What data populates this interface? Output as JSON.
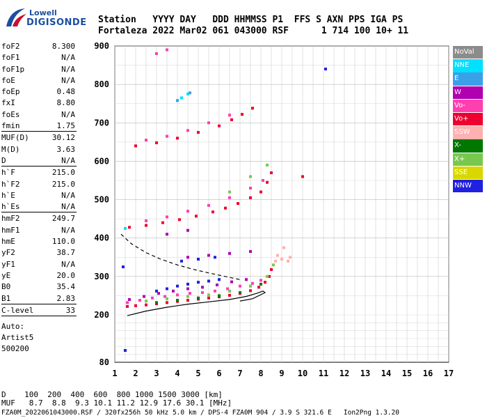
{
  "logo": {
    "line1": "Lowell",
    "line2": "DIGISONDE"
  },
  "header": {
    "row1": "Station   YYYY DAY   DDD HHMMSS P1  FFS S AXN PPS IGA PS",
    "row2": "Fortaleza 2022 Mar02 061 043000 RSF      1 714 100 10+ 11"
  },
  "params": [
    {
      "name": "foF2",
      "value": "8.300"
    },
    {
      "name": "foF1",
      "value": "N/A"
    },
    {
      "name": "foF1p",
      "value": "N/A"
    },
    {
      "name": "foE",
      "value": "N/A"
    },
    {
      "name": "foEp",
      "value": "0.48"
    },
    {
      "name": "fxI",
      "value": "8.80"
    },
    {
      "name": "foEs",
      "value": "N/A"
    },
    {
      "name": "fmin",
      "value": "1.75"
    },
    {
      "name": "MUF(D)",
      "value": "30.12"
    },
    {
      "name": "M(D)",
      "value": "3.63"
    },
    {
      "name": "D",
      "value": "N/A"
    },
    {
      "name": "h`F",
      "value": "215.0"
    },
    {
      "name": "h`F2",
      "value": "215.0"
    },
    {
      "name": "h`E",
      "value": "N/A"
    },
    {
      "name": "h`Es",
      "value": "N/A"
    },
    {
      "name": "hmF2",
      "value": "249.7"
    },
    {
      "name": "hmF1",
      "value": "N/A"
    },
    {
      "name": "hmE",
      "value": "110.0"
    },
    {
      "name": "yF2",
      "value": "38.7"
    },
    {
      "name": "yF1",
      "value": "N/A"
    },
    {
      "name": "yE",
      "value": "20.0"
    },
    {
      "name": "B0",
      "value": "35.4"
    },
    {
      "name": "B1",
      "value": "2.83"
    },
    {
      "name": "C-level",
      "value": "33"
    }
  ],
  "auto": {
    "line1": "Auto:",
    "line2": "Artist5",
    "line3": "500200"
  },
  "legend": [
    {
      "label": "NoVal",
      "color": "#8c8c8c"
    },
    {
      "label": "NNE",
      "color": "#00e0ff"
    },
    {
      "label": "E",
      "color": "#3aa0e8"
    },
    {
      "label": "W",
      "color": "#b000b0"
    },
    {
      "label": "Vo-",
      "color": "#ff3fb0"
    },
    {
      "label": "Vo+",
      "color": "#ee0030"
    },
    {
      "label": "SSW",
      "color": "#ffb0b0"
    },
    {
      "label": "X-",
      "color": "#007800"
    },
    {
      "label": "X+",
      "color": "#78c850"
    },
    {
      "label": "SSE",
      "color": "#d8d800"
    },
    {
      "label": "NNW",
      "color": "#2020e0"
    }
  ],
  "footer": {
    "row1": "D    100  200  400  600  800 1000 1500 3000 [km]",
    "row2": "MUF   8.7  8.8  9.3 10.1 11.2 12.9 17.6 30.1 [MHz]",
    "row3": "FZA0M_2022061043000.RSF / 320fx256h 50 kHz 5.0 km / DPS-4 FZA0M 904 / 3.9 S 321.6 E   Ion2Png 1.3.20"
  },
  "chart_data": {
    "type": "scatter",
    "xlabel": "",
    "ylabel": "",
    "xlim": [
      1,
      17
    ],
    "ylim": [
      80,
      900
    ],
    "x_ticks": [
      1,
      2,
      3,
      4,
      5,
      6,
      7,
      8,
      9,
      10,
      11,
      12,
      13,
      14,
      15,
      16,
      17
    ],
    "y_ticks": [
      80,
      200,
      300,
      400,
      500,
      600,
      700,
      800,
      900
    ],
    "grid": true,
    "legend_position": "right",
    "series": [
      {
        "name": "Vo+",
        "color": "#ee0030",
        "points": [
          [
            1.6,
            222
          ],
          [
            2.0,
            224
          ],
          [
            2.5,
            226
          ],
          [
            3.0,
            229
          ],
          [
            3.5,
            232
          ],
          [
            4.0,
            235
          ],
          [
            4.5,
            238
          ],
          [
            5.0,
            241
          ],
          [
            5.5,
            244
          ],
          [
            6.0,
            247
          ],
          [
            6.5,
            251
          ],
          [
            7.0,
            256
          ],
          [
            7.5,
            263
          ],
          [
            7.9,
            272
          ],
          [
            8.2,
            285
          ],
          [
            8.4,
            300
          ],
          [
            8.5,
            318
          ]
        ]
      },
      {
        "name": "Vo-",
        "color": "#ff3fb0",
        "points": [
          [
            1.6,
            232
          ],
          [
            2.2,
            238
          ],
          [
            2.8,
            244
          ],
          [
            3.4,
            248
          ],
          [
            4.0,
            252
          ],
          [
            4.6,
            256
          ],
          [
            5.2,
            258
          ],
          [
            5.8,
            262
          ],
          [
            6.4,
            268
          ],
          [
            7.0,
            275
          ],
          [
            7.6,
            282
          ],
          [
            8.0,
            290
          ]
        ]
      },
      {
        "name": "W",
        "color": "#b000b0",
        "points": [
          [
            1.7,
            240
          ],
          [
            2.4,
            248
          ],
          [
            3.1,
            256
          ],
          [
            3.8,
            262
          ],
          [
            4.5,
            268
          ],
          [
            5.2,
            272
          ],
          [
            5.9,
            278
          ],
          [
            6.6,
            286
          ],
          [
            7.3,
            292
          ],
          [
            4.5,
            350
          ],
          [
            5.5,
            355
          ],
          [
            6.5,
            360
          ],
          [
            7.5,
            365
          ],
          [
            3.5,
            410
          ],
          [
            4.5,
            420
          ]
        ]
      },
      {
        "name": "NNW",
        "color": "#2020e0",
        "points": [
          [
            3.0,
            262
          ],
          [
            3.5,
            268
          ],
          [
            4.0,
            275
          ],
          [
            4.5,
            280
          ],
          [
            5.0,
            285
          ],
          [
            5.5,
            288
          ],
          [
            6.0,
            292
          ],
          [
            4.2,
            340
          ],
          [
            5.0,
            345
          ],
          [
            5.8,
            350
          ],
          [
            11.1,
            840
          ],
          [
            1.4,
            325
          ],
          [
            1.5,
            110
          ]
        ]
      },
      {
        "name": "X+",
        "color": "#78c850",
        "points": [
          [
            2.5,
            236
          ],
          [
            3.5,
            242
          ],
          [
            4.5,
            248
          ],
          [
            5.5,
            252
          ],
          [
            6.5,
            262
          ],
          [
            7.5,
            275
          ],
          [
            8.3,
            300
          ],
          [
            8.6,
            330
          ],
          [
            8.3,
            590
          ],
          [
            7.5,
            560
          ],
          [
            6.5,
            520
          ]
        ]
      },
      {
        "name": "X-",
        "color": "#007800",
        "points": [
          [
            3.0,
            232
          ],
          [
            4.0,
            238
          ],
          [
            5.0,
            244
          ],
          [
            6.0,
            250
          ],
          [
            7.0,
            258
          ],
          [
            8.0,
            280
          ]
        ]
      },
      {
        "name": "SSW",
        "color": "#ffb0b0",
        "points": [
          [
            8.7,
            340
          ],
          [
            9.0,
            345
          ],
          [
            9.3,
            340
          ],
          [
            9.1,
            375
          ],
          [
            8.8,
            355
          ],
          [
            9.4,
            350
          ]
        ]
      },
      {
        "name": "NNE",
        "color": "#00e0ff",
        "points": [
          [
            1.5,
            425
          ],
          [
            4.2,
            765
          ],
          [
            4.5,
            775
          ]
        ]
      },
      {
        "name": "E",
        "color": "#3aa0e8",
        "points": [
          [
            4.0,
            758
          ],
          [
            4.6,
            778
          ]
        ]
      },
      {
        "name": "Vo+ 2nd hop",
        "color": "#ee0030",
        "points": [
          [
            1.7,
            428
          ],
          [
            2.5,
            433
          ],
          [
            3.3,
            440
          ],
          [
            4.1,
            448
          ],
          [
            4.9,
            457
          ],
          [
            5.7,
            468
          ],
          [
            6.3,
            478
          ],
          [
            6.9,
            490
          ],
          [
            7.5,
            505
          ],
          [
            8.0,
            520
          ],
          [
            8.3,
            545
          ],
          [
            8.5,
            570
          ],
          [
            2.0,
            640
          ],
          [
            3.0,
            648
          ],
          [
            4.0,
            660
          ],
          [
            5.0,
            675
          ],
          [
            6.0,
            692
          ],
          [
            6.6,
            708
          ],
          [
            7.1,
            722
          ],
          [
            7.6,
            738
          ],
          [
            10.0,
            560
          ]
        ]
      },
      {
        "name": "Vo- 2nd hop",
        "color": "#ff3fb0",
        "points": [
          [
            2.5,
            445
          ],
          [
            3.5,
            455
          ],
          [
            4.5,
            470
          ],
          [
            5.5,
            485
          ],
          [
            6.5,
            505
          ],
          [
            7.5,
            530
          ],
          [
            8.1,
            550
          ],
          [
            2.5,
            655
          ],
          [
            3.5,
            665
          ],
          [
            4.5,
            680
          ],
          [
            5.5,
            700
          ],
          [
            6.5,
            720
          ],
          [
            3.0,
            880
          ],
          [
            3.5,
            890
          ]
        ]
      }
    ],
    "curves": [
      {
        "name": "profile",
        "style": "solid",
        "points": [
          [
            1.6,
            198
          ],
          [
            2.5,
            210
          ],
          [
            3.5,
            220
          ],
          [
            4.5,
            228
          ],
          [
            5.5,
            234
          ],
          [
            6.5,
            240
          ],
          [
            7.3,
            248
          ],
          [
            7.8,
            256
          ],
          [
            8.1,
            262
          ],
          [
            8.2,
            258
          ],
          [
            7.6,
            242
          ],
          [
            7.0,
            236
          ]
        ]
      },
      {
        "name": "profile-dashed",
        "style": "dashed",
        "points": [
          [
            1.3,
            410
          ],
          [
            1.8,
            385
          ],
          [
            2.5,
            362
          ],
          [
            3.2,
            345
          ],
          [
            4.0,
            330
          ],
          [
            4.8,
            318
          ],
          [
            5.6,
            308
          ],
          [
            6.3,
            300
          ],
          [
            7.0,
            292
          ]
        ]
      }
    ]
  }
}
